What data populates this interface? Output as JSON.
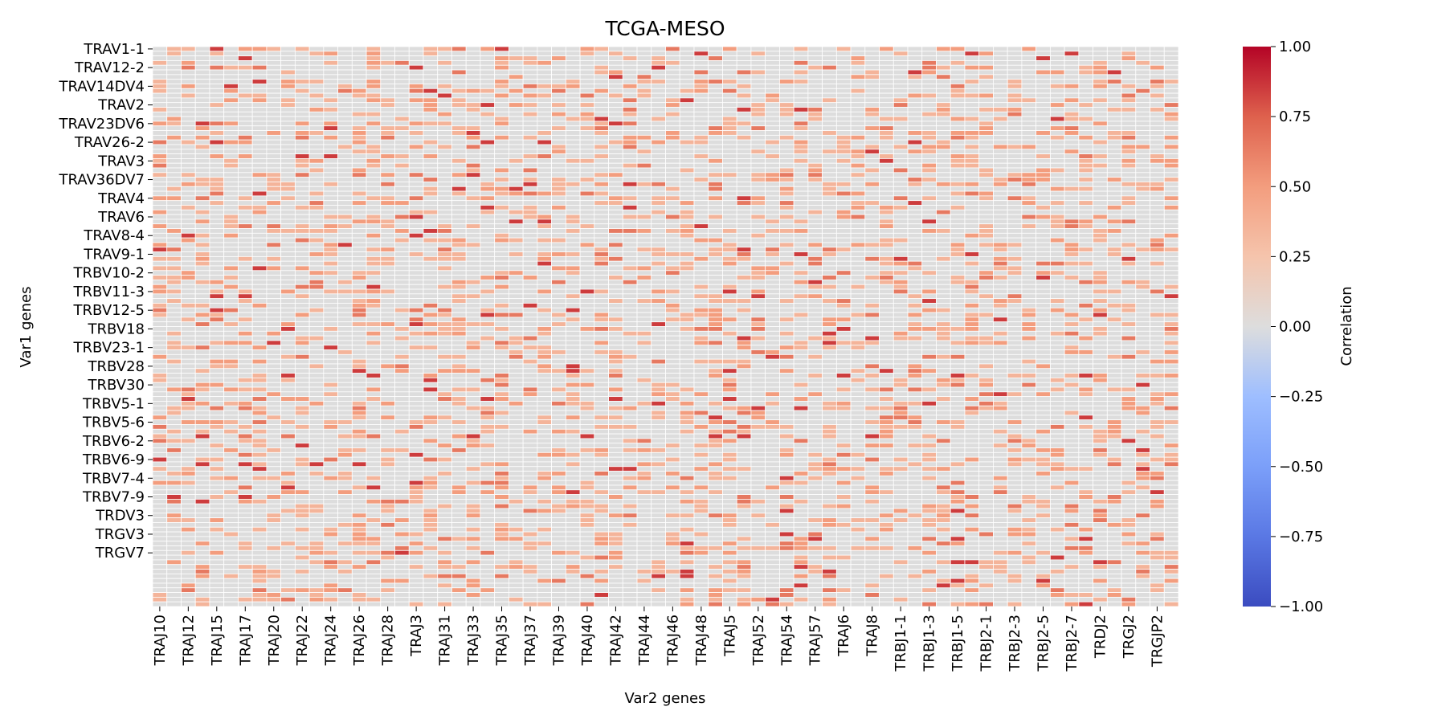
{
  "chart_data": {
    "type": "heatmap",
    "title": "TCGA-MESO",
    "xlabel": "Var2 genes",
    "ylabel": "Var1 genes",
    "colorbar_label": "Correlation",
    "colormap": "coolwarm",
    "vmin": -1.0,
    "vmax": 1.0,
    "colorbar_ticks": [
      "1.00",
      "0.75",
      "0.50",
      "0.25",
      "0.00",
      "−0.25",
      "−0.50",
      "−0.75",
      "−1.00"
    ],
    "colorbar_tick_values": [
      1.0,
      0.75,
      0.5,
      0.25,
      0.0,
      -0.25,
      -0.5,
      -0.75,
      -1.0
    ],
    "n_rows": 120,
    "n_cols": 72,
    "row_tick_labels": [
      "TRAV1-1",
      "TRAV12-2",
      "TRAV14DV4",
      "TRAV2",
      "TRAV23DV6",
      "TRAV26-2",
      "TRAV3",
      "TRAV36DV7",
      "TRAV4",
      "TRAV6",
      "TRAV8-4",
      "TRAV9-1",
      "TRBV10-2",
      "TRBV11-3",
      "TRBV12-5",
      "TRBV18",
      "TRBV23-1",
      "TRBV28",
      "TRBV30",
      "TRBV5-1",
      "TRBV5-6",
      "TRBV6-2",
      "TRBV6-9",
      "TRBV7-4",
      "TRBV7-9",
      "TRDV3",
      "TRGV3",
      "TRGV7"
    ],
    "col_tick_labels": [
      "TRAJ10",
      "TRAJ12",
      "TRAJ15",
      "TRAJ17",
      "TRAJ20",
      "TRAJ22",
      "TRAJ24",
      "TRAJ26",
      "TRAJ28",
      "TRAJ3",
      "TRAJ31",
      "TRAJ33",
      "TRAJ35",
      "TRAJ37",
      "TRAJ39",
      "TRAJ40",
      "TRAJ42",
      "TRAJ44",
      "TRAJ46",
      "TRAJ48",
      "TRAJ5",
      "TRAJ52",
      "TRAJ54",
      "TRAJ57",
      "TRAJ6",
      "TRAJ8",
      "TRBJ1-1",
      "TRBJ1-3",
      "TRBJ1-5",
      "TRBJ2-1",
      "TRBJ2-3",
      "TRBJ2-5",
      "TRBJ2-7",
      "TRDJ2",
      "TRGJ2",
      "TRGJP2"
    ],
    "value_distribution": {
      "zero_fraction": 0.72,
      "levels": [
        0.35,
        0.5,
        0.65,
        0.85
      ],
      "level_weights": [
        0.55,
        0.25,
        0.13,
        0.07
      ]
    },
    "colors": {
      "neutral": "#dddddd",
      "cell_border": "#ffffff"
    }
  }
}
